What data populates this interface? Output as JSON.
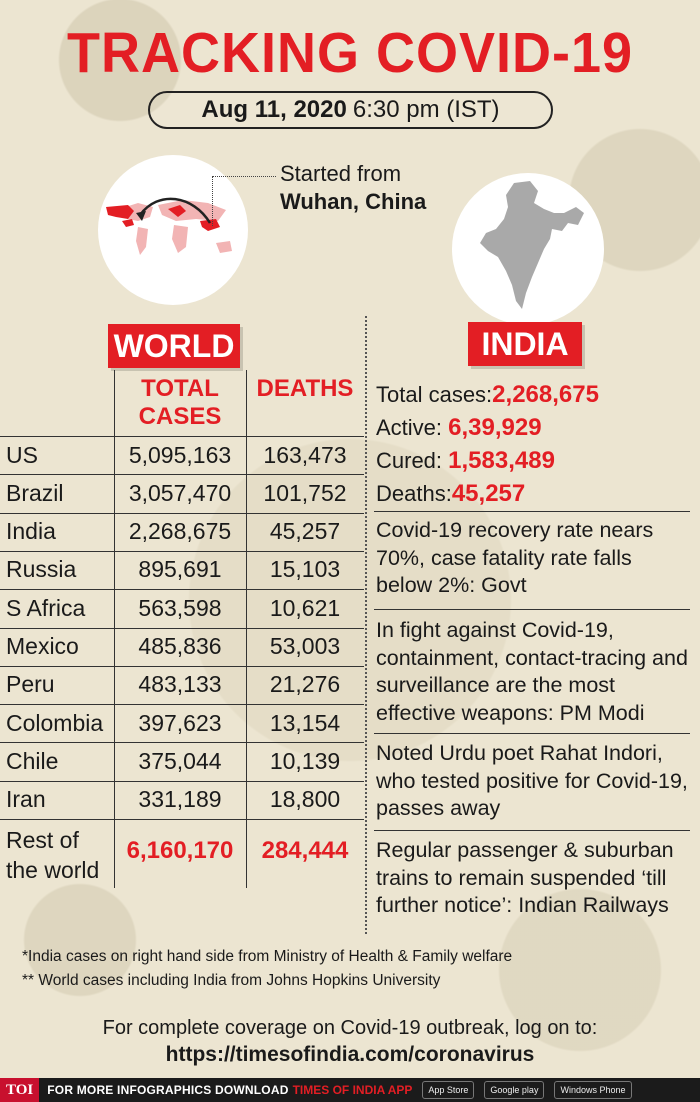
{
  "title": "TRACKING COVID-19",
  "date": {
    "bold": "Aug 11, 2020",
    "time": "6:30 pm (IST)"
  },
  "origin": {
    "line1": "Started from",
    "city": "Wuhan, China"
  },
  "world": {
    "header": "WORLD",
    "columns": {
      "cases_l1": "TOTAL",
      "cases_l2": "CASES",
      "deaths": "DEATHS"
    },
    "rows": [
      {
        "country": "US",
        "cases": "5,095,163",
        "deaths": "163,473"
      },
      {
        "country": "Brazil",
        "cases": "3,057,470",
        "deaths": "101,752"
      },
      {
        "country": "India",
        "cases": "2,268,675",
        "deaths": "45,257"
      },
      {
        "country": "Russia",
        "cases": "895,691",
        "deaths": "15,103"
      },
      {
        "country": "S Africa",
        "cases": "563,598",
        "deaths": "10,621"
      },
      {
        "country": "Mexico",
        "cases": "485,836",
        "deaths": "53,003"
      },
      {
        "country": "Peru",
        "cases": "483,133",
        "deaths": "21,276"
      },
      {
        "country": "Colombia",
        "cases": "397,623",
        "deaths": "13,154"
      },
      {
        "country": "Chile",
        "cases": "375,044",
        "deaths": "10,139"
      },
      {
        "country": "Iran",
        "cases": "331,189",
        "deaths": "18,800"
      }
    ],
    "rest": {
      "l1": "Rest of",
      "l2": "the world",
      "cases": "6,160,170",
      "deaths": "284,444"
    }
  },
  "india": {
    "header": "INDIA",
    "stats": [
      {
        "label": "Total cases:",
        "value": "2,268,675"
      },
      {
        "label": "Active: ",
        "value": "6,39,929"
      },
      {
        "label": "Cured: ",
        "value": "1,583,489"
      },
      {
        "label": "Deaths:",
        "value": "45,257"
      }
    ],
    "news": [
      "Covid-19 recovery rate nears 70%, case fatality rate falls below 2%: Govt",
      "In fight against Covid-19, containment, contact-tracing and surveillance are the most effective weapons: PM Modi",
      "Noted Urdu poet Rahat Indori, who tested positive for Covid-19, passes away",
      "Regular passenger & suburban trains to remain suspended ‘till further notice’: Indian Railways"
    ]
  },
  "footnotes": [
    "*India cases on right hand side from Ministry of Health & Family welfare",
    "** World cases including India from Johns Hopkins University"
  ],
  "coverage": {
    "text": "For complete coverage on Covid-19 outbreak, log on to:",
    "link": "https://timesofindia.com/coronavirus"
  },
  "bottom_bar": {
    "logo": "TOI",
    "text": "FOR MORE  INFOGRAPHICS DOWNLOAD",
    "app": "TIMES OF INDIA APP",
    "badges": [
      "App Store",
      "Google play",
      "Windows Phone"
    ]
  },
  "colors": {
    "accent": "#e31e24",
    "background": "#ece5d1"
  }
}
